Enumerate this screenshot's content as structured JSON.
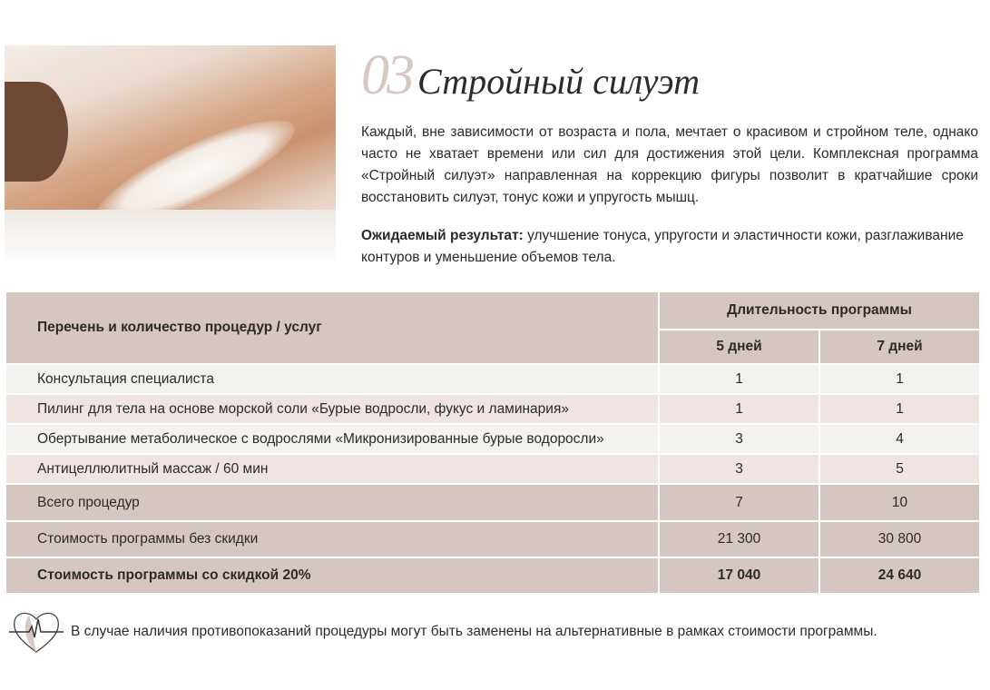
{
  "header": {
    "number": "03",
    "title": "Стройный силуэт"
  },
  "description": "Каждый, вне зависимости от возраста и пола, мечтает о красивом и стройном теле, однако часто не хватает времени или сил для достижения этой цели. Комплексная программа «Стройный силуэт» направленная на коррекцию фигуры позволит в кратчайшие сроки восстановить силуэт, тонус кожи и упругость мышц.",
  "result": {
    "label": "Ожидаемый результат:",
    "text": " улучшение тонуса, упругости и эластичности кожи, разглаживание контуров и уменьшение объемов тела."
  },
  "table": {
    "col_header": "Перечень и количество процедур / услуг",
    "duration_header": "Длительность программы",
    "durations": [
      "5 дней",
      "7 дней"
    ],
    "rows": [
      {
        "name": "Консультация специалиста",
        "v5": "1",
        "v7": "1"
      },
      {
        "name": "Пилинг для тела на основе морской соли «Бурые водросли, фукус и ламинария»",
        "v5": "1",
        "v7": "1"
      },
      {
        "name": "Обертывание метаболическое с водрослями  «Микронизированные бурые водоросли»",
        "v5": "3",
        "v7": "4"
      },
      {
        "name": "Антицеллюлитный массаж / 60 мин",
        "v5": "3",
        "v7": "5"
      },
      {
        "name": "Всего процедур",
        "v5": "7",
        "v7": "10"
      },
      {
        "name": "Стоимость программы без скидки",
        "v5": "21 300",
        "v7": "30 800"
      },
      {
        "name": "Стоимость программы со скидкой 20%",
        "v5": "17 040",
        "v7": "24 640"
      }
    ]
  },
  "note": {
    "icon": "heart-pulse-icon",
    "text": "В случае наличия противопоказаний процедуры могут быть заменены на альтернативные в рамках стоимости программы."
  },
  "colors": {
    "header_bg": "#d6c6c2",
    "row_light": "#f4f2ef",
    "row_pink": "#efe4e1",
    "accent_number": "#d8c7c2"
  }
}
